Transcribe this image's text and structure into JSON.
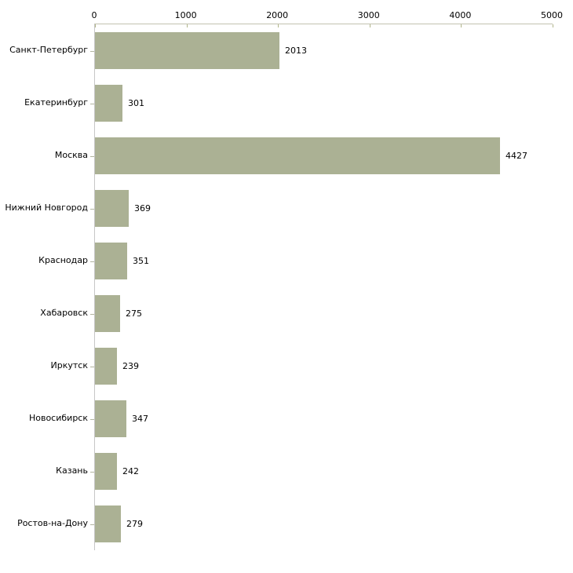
{
  "chart_data": {
    "type": "bar",
    "orientation": "horizontal",
    "title": "",
    "xlabel": "",
    "ylabel": "",
    "categories": [
      "Санкт-Петербург",
      "Екатеринбург",
      "Москва",
      "Нижний Новгород",
      "Краснодар",
      "Хабаровск",
      "Иркутск",
      "Новосибирск",
      "Казань",
      "Ростов-на-Дону"
    ],
    "values": [
      2013,
      301,
      4427,
      369,
      351,
      275,
      239,
      347,
      242,
      279
    ],
    "value_labels": [
      "2013",
      "301",
      "4427",
      "369",
      "351",
      "275",
      "239",
      "347",
      "242",
      "279"
    ],
    "xlim": [
      0,
      5000
    ],
    "x_ticks": [
      0,
      1000,
      2000,
      3000,
      4000,
      5000
    ],
    "x_tick_labels": [
      "0",
      "1000",
      "2000",
      "3000",
      "4000",
      "5000"
    ],
    "axis_position": "top",
    "grid": false,
    "legend": false,
    "colors": {
      "bar_fill": "#abb194",
      "axis_line_horizontal": "#c2c2b0",
      "axis_line_vertical": "#c6c6c6",
      "tick_mark": "#b1b58a",
      "label_text": "#000000",
      "background": "#ffffff"
    }
  }
}
